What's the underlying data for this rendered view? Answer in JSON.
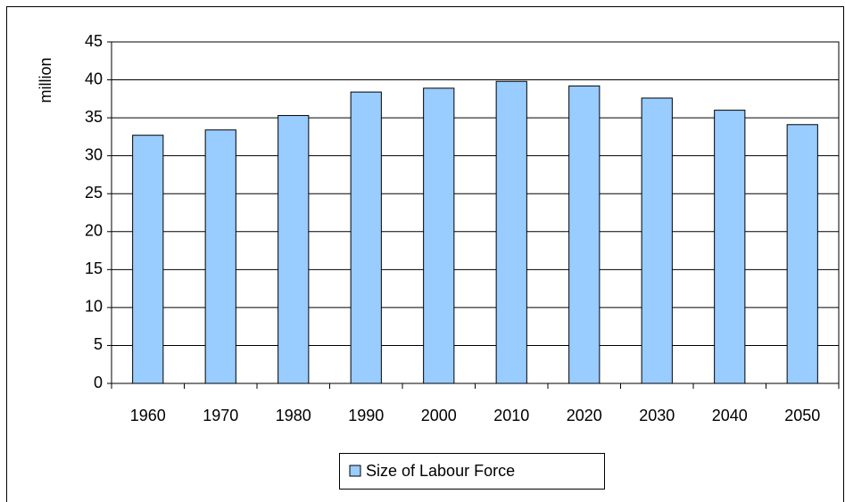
{
  "chart_data": {
    "type": "bar",
    "y_label": "million",
    "categories": [
      "1960",
      "1970",
      "1980",
      "1990",
      "2000",
      "2010",
      "2020",
      "2030",
      "2040",
      "2050"
    ],
    "series": [
      {
        "name": "Size of Labour Force",
        "color": "#99ccff",
        "values": [
          32.7,
          33.4,
          35.3,
          38.4,
          38.9,
          39.8,
          39.2,
          37.6,
          36.0,
          34.1
        ]
      }
    ],
    "ylim": [
      0,
      45
    ],
    "yticks": [
      0,
      5,
      10,
      15,
      20,
      25,
      30,
      35,
      40,
      45
    ],
    "grid": true,
    "legend": "bottom"
  }
}
